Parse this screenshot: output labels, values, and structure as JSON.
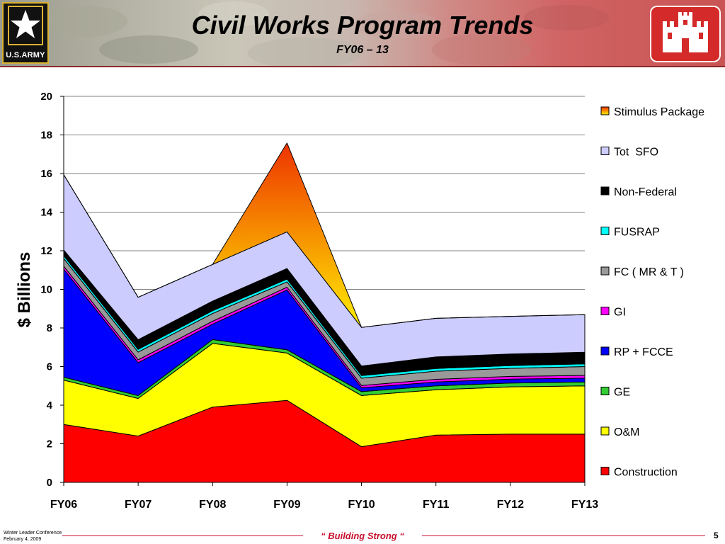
{
  "header": {
    "title": "Civil Works Program Trends",
    "subtitle": "FY06 – 13",
    "army_logo_text": "U.S.ARMY",
    "army_logo_icon": "star-icon",
    "usace_logo_icon": "castle-icon"
  },
  "footer": {
    "conference_line1": "Winter Leader Conference",
    "conference_line2": "February 4, 2009",
    "motto": "“ Building  Strong “",
    "page_number": "5"
  },
  "chart_data": {
    "type": "area",
    "stacked": true,
    "categories": [
      "FY06",
      "FY07",
      "FY08",
      "FY09",
      "FY10",
      "FY11",
      "FY12",
      "FY13"
    ],
    "ylabel": "$ Billions",
    "xlabel": "",
    "ylim": [
      0,
      20
    ],
    "yticks": [
      0,
      2,
      4,
      6,
      8,
      10,
      12,
      14,
      16,
      18,
      20
    ],
    "grid": "horizontal",
    "legend_position": "right",
    "series": [
      {
        "name": "Construction",
        "color": "#ff0000",
        "values": [
          3.0,
          2.4,
          3.9,
          4.25,
          1.85,
          2.45,
          2.5,
          2.5
        ]
      },
      {
        "name": "O&M",
        "color": "#ffff00",
        "values": [
          2.3,
          1.95,
          3.3,
          2.45,
          2.65,
          2.35,
          2.45,
          2.5
        ]
      },
      {
        "name": "GE",
        "color": "#33cc33",
        "values": [
          0.15,
          0.15,
          0.2,
          0.17,
          0.2,
          0.2,
          0.2,
          0.2
        ]
      },
      {
        "name": "RP + FCCE",
        "color": "#0000ff",
        "values": [
          5.6,
          1.7,
          0.8,
          3.1,
          0.2,
          0.2,
          0.2,
          0.2
        ]
      },
      {
        "name": "GI",
        "color": "#ff00ff",
        "values": [
          0.15,
          0.15,
          0.15,
          0.14,
          0.12,
          0.14,
          0.14,
          0.14
        ]
      },
      {
        "name": "FC ( MR & T )",
        "color": "#999999",
        "values": [
          0.4,
          0.4,
          0.4,
          0.28,
          0.38,
          0.42,
          0.42,
          0.46
        ]
      },
      {
        "name": "FUSRAP",
        "color": "#00ffff",
        "values": [
          0.14,
          0.14,
          0.14,
          0.14,
          0.13,
          0.14,
          0.14,
          0.14
        ]
      },
      {
        "name": "Non-Federal",
        "color": "#000000",
        "values": [
          0.3,
          0.5,
          0.5,
          0.55,
          0.5,
          0.6,
          0.6,
          0.6
        ]
      },
      {
        "name": "Tot  SFO",
        "color": "#ccccff",
        "values": [
          3.9,
          2.2,
          1.9,
          1.9,
          2.0,
          2.0,
          1.95,
          1.95
        ]
      },
      {
        "name": "Stimulus Package",
        "color_top": "#ee3300",
        "color_bottom": "#ffee00",
        "values": [
          0,
          0,
          0,
          4.6,
          0,
          0,
          0,
          0
        ]
      }
    ]
  }
}
